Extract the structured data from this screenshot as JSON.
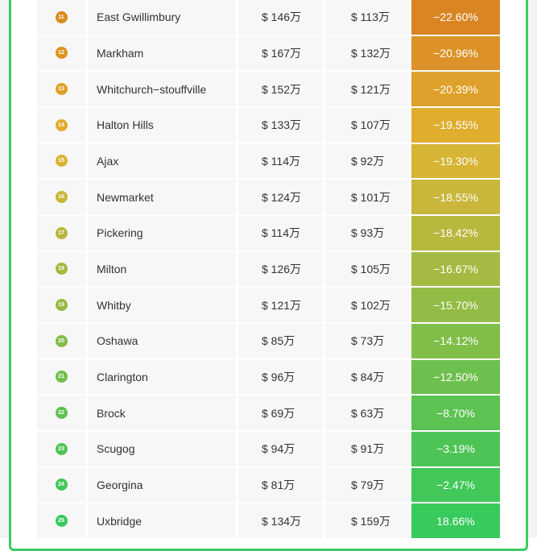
{
  "table": {
    "rows": [
      {
        "rank": "11",
        "name": "East Gwillimbury",
        "before": "$ 146万",
        "after": "$ 113万",
        "change": "−22.60%",
        "badge_color": "#d98a1f",
        "change_color": "#d98523"
      },
      {
        "rank": "12",
        "name": "Markham",
        "before": "$ 167万",
        "after": "$ 132万",
        "change": "−20.96%",
        "badge_color": "#dc9520",
        "change_color": "#dc9228"
      },
      {
        "rank": "13",
        "name": "Whitchurch−stouffville",
        "before": "$ 152万",
        "after": "$ 121万",
        "change": "−20.39%",
        "badge_color": "#dea026",
        "change_color": "#dfa12c"
      },
      {
        "rank": "14",
        "name": "Halton Hills",
        "before": "$ 133万",
        "after": "$ 107万",
        "change": "−19.55%",
        "badge_color": "#e0ac2c",
        "change_color": "#e0ad2f"
      },
      {
        "rank": "15",
        "name": "Ajax",
        "before": "$ 114万",
        "after": "$ 92万",
        "change": "−19.30%",
        "badge_color": "#d9b332",
        "change_color": "#d6b434"
      },
      {
        "rank": "16",
        "name": "Newmarket",
        "before": "$ 124万",
        "after": "$ 101万",
        "change": "−18.55%",
        "badge_color": "#cbb537",
        "change_color": "#c9b63a"
      },
      {
        "rank": "17",
        "name": "Pickering",
        "before": "$ 114万",
        "after": "$ 93万",
        "change": "−18.42%",
        "badge_color": "#b9b73b",
        "change_color": "#b7b83e"
      },
      {
        "rank": "18",
        "name": "Milton",
        "before": "$ 126万",
        "after": "$ 105万",
        "change": "−16.67%",
        "badge_color": "#a7b83f",
        "change_color": "#a5ba42"
      },
      {
        "rank": "19",
        "name": "Whitby",
        "before": "$ 121万",
        "after": "$ 102万",
        "change": "−15.70%",
        "badge_color": "#95bb43",
        "change_color": "#93bc46"
      },
      {
        "rank": "20",
        "name": "Oshawa",
        "before": "$ 85万",
        "after": "$ 73万",
        "change": "−14.12%",
        "badge_color": "#82bd47",
        "change_color": "#80be4a"
      },
      {
        "rank": "21",
        "name": "Clarington",
        "before": "$ 96万",
        "after": "$ 84万",
        "change": "−12.50%",
        "badge_color": "#70bf4b",
        "change_color": "#6ec04e"
      },
      {
        "rank": "22",
        "name": "Brock",
        "before": "$ 69万",
        "after": "$ 63万",
        "change": "−8.70%",
        "badge_color": "#5ec14f",
        "change_color": "#5cc252"
      },
      {
        "rank": "23",
        "name": "Scugog",
        "before": "$ 94万",
        "after": "$ 91万",
        "change": "−3.19%",
        "badge_color": "#4fc453",
        "change_color": "#4dc455"
      },
      {
        "rank": "24",
        "name": "Georgina",
        "before": "$ 81万",
        "after": "$ 79万",
        "change": "−2.47%",
        "badge_color": "#43c657",
        "change_color": "#42c759"
      },
      {
        "rank": "25",
        "name": "Uxbridge",
        "before": "$ 134万",
        "after": "$ 159万",
        "change": "18.66%",
        "badge_color": "#3ac95b",
        "change_color": "#38ca5d"
      }
    ]
  }
}
